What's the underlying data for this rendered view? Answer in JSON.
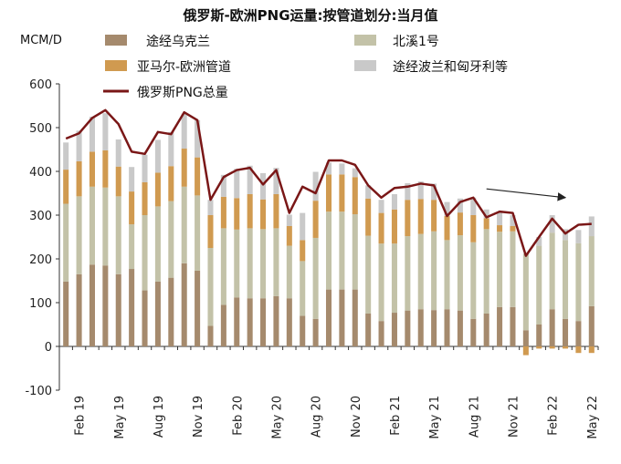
{
  "chart_data": {
    "type": "bar",
    "stacked": true,
    "title": "俄罗斯-欧洲PNG运量:按管道划分:当月值",
    "ylabel": "MCM/D",
    "ylim": [
      -100,
      600
    ],
    "yticks": [
      -100,
      0,
      100,
      200,
      300,
      400,
      500,
      600
    ],
    "xtick_labels": [
      "Feb 19",
      "May 19",
      "Aug 19",
      "Nov 19",
      "Feb 20",
      "May 20",
      "Aug 20",
      "Nov 20",
      "Feb 21",
      "May 21",
      "Aug 21",
      "Nov 21",
      "Feb 22",
      "May 22"
    ],
    "categories": [
      "2019-01",
      "2019-02",
      "2019-03",
      "2019-04",
      "2019-05",
      "2019-06",
      "2019-07",
      "2019-08",
      "2019-09",
      "2019-10",
      "2019-11",
      "2019-12",
      "2020-01",
      "2020-02",
      "2020-03",
      "2020-04",
      "2020-05",
      "2020-06",
      "2020-07",
      "2020-08",
      "2020-09",
      "2020-10",
      "2020-11",
      "2020-12",
      "2021-01",
      "2021-02",
      "2021-03",
      "2021-04",
      "2021-05",
      "2021-06",
      "2021-07",
      "2021-08",
      "2021-09",
      "2021-10",
      "2021-11",
      "2021-12",
      "2022-01",
      "2022-02",
      "2022-03",
      "2022-04",
      "2022-05"
    ],
    "series": [
      {
        "name": "途经乌克兰",
        "color": "#a58a6d",
        "values": [
          148,
          165,
          187,
          185,
          165,
          177,
          128,
          148,
          157,
          190,
          173,
          47,
          95,
          112,
          110,
          110,
          115,
          110,
          70,
          63,
          130,
          130,
          130,
          75,
          58,
          77,
          82,
          85,
          83,
          85,
          82,
          63,
          75,
          90,
          90,
          37,
          50,
          85,
          63,
          58,
          92
        ]
      },
      {
        "name": "北溪1号",
        "color": "#c3c2a8",
        "values": [
          178,
          178,
          178,
          178,
          178,
          102,
          172,
          172,
          175,
          175,
          172,
          178,
          175,
          155,
          160,
          158,
          155,
          120,
          125,
          185,
          178,
          178,
          172,
          178,
          177,
          158,
          170,
          172,
          180,
          158,
          172,
          175,
          193,
          172,
          173,
          175,
          180,
          175,
          180,
          178,
          160
        ]
      },
      {
        "name": "亚马尔-欧洲管道",
        "color": "#d09a50",
        "values": [
          78,
          80,
          80,
          85,
          68,
          75,
          75,
          77,
          80,
          87,
          87,
          75,
          72,
          72,
          78,
          68,
          78,
          45,
          48,
          85,
          85,
          85,
          85,
          85,
          70,
          78,
          83,
          80,
          72,
          55,
          52,
          62,
          25,
          15,
          12,
          -20,
          -5,
          -5,
          -5,
          -15,
          -15
        ]
      },
      {
        "name": "途经波兰和匈牙利等",
        "color": "#c9c9c9",
        "values": [
          62,
          70,
          80,
          85,
          62,
          56,
          63,
          75,
          78,
          80,
          85,
          35,
          50,
          67,
          65,
          60,
          60,
          26,
          62,
          66,
          27,
          25,
          20,
          30,
          30,
          35,
          38,
          40,
          37,
          32,
          32,
          40,
          20,
          30,
          25,
          0,
          20,
          40,
          25,
          30,
          45
        ]
      },
      {
        "name": "俄罗斯PNG总量",
        "color": "#7a1717",
        "kind": "line",
        "values": [
          475,
          487,
          522,
          540,
          508,
          445,
          440,
          490,
          485,
          535,
          517,
          335,
          387,
          403,
          408,
          370,
          403,
          305,
          365,
          350,
          425,
          425,
          415,
          368,
          340,
          362,
          365,
          372,
          368,
          298,
          330,
          340,
          295,
          308,
          305,
          207,
          250,
          292,
          258,
          278,
          280
        ]
      }
    ],
    "annotations": [
      {
        "kind": "arrow",
        "from_index": 32,
        "from_value": 360,
        "to_index": 38,
        "to_value": 340
      }
    ]
  }
}
